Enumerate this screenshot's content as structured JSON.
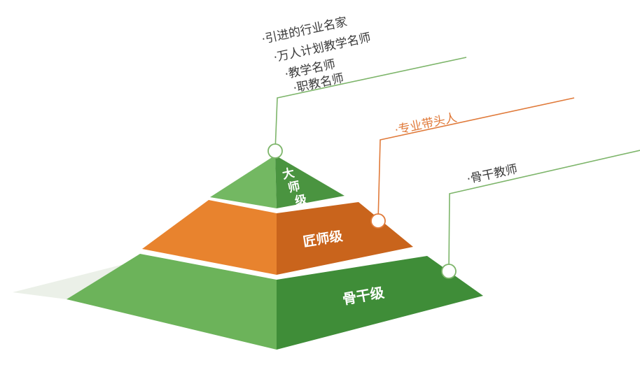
{
  "pyramid": {
    "top": {
      "label": "大师级",
      "glyphs": [
        "大",
        "师",
        "级"
      ]
    },
    "middle": {
      "label": "匠师级"
    },
    "bottom": {
      "label": "骨干级"
    }
  },
  "callouts": {
    "top_items": [
      "·引进的行业名家",
      "·万人计划教学名师",
      "·教学名师",
      "·职教名师"
    ],
    "middle_item": "·专业带头人",
    "bottom_item": "·骨干教师"
  },
  "colors": {
    "green_light": "#6cb35a",
    "green_dark": "#3f8d38",
    "green_top_light": "#73b862",
    "green_top_dark": "#4a9440",
    "orange_light": "#e8832e",
    "orange_dark": "#c9641c",
    "green_line": "#7db56a",
    "orange_line": "#e07a3a",
    "text_dark": "#3a3a3a",
    "text_orange": "#e07a3a"
  }
}
